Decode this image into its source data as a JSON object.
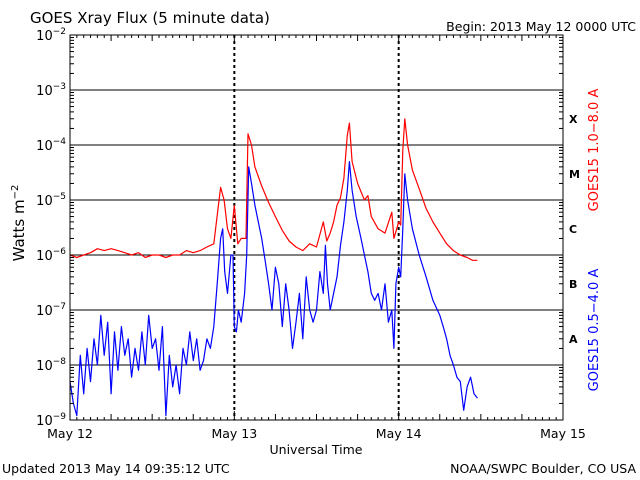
{
  "header": {
    "title": "GOES Xray Flux (5 minute data)",
    "begin": "Begin:  2013 May 12 0000 UTC"
  },
  "footer": {
    "updated": "Updated 2013 May 14 09:35:12 UTC",
    "source": "NOAA/SWPC Boulder, CO USA"
  },
  "chart_data": {
    "type": "line",
    "title": "GOES Xray Flux (5 minute data)",
    "xlabel": "Universal Time",
    "ylabel": "Watts m^-2",
    "y_scale": "log",
    "ylim": [
      1e-09,
      0.01
    ],
    "xlim": [
      0,
      72
    ],
    "x_unit": "hours since 2013 May 12 0000 UTC",
    "x_ticks": [
      {
        "x": 0,
        "label": "May 12"
      },
      {
        "x": 24,
        "label": "May 13"
      },
      {
        "x": 48,
        "label": "May 14"
      },
      {
        "x": 72,
        "label": "May 15"
      }
    ],
    "y_ticks": [
      {
        "exp": -9,
        "base": "10",
        "sup": "−9"
      },
      {
        "exp": -8,
        "base": "10",
        "sup": "−8"
      },
      {
        "exp": -7,
        "base": "10",
        "sup": "−7"
      },
      {
        "exp": -6,
        "base": "10",
        "sup": "−6"
      },
      {
        "exp": -5,
        "base": "10",
        "sup": "−5"
      },
      {
        "exp": -4,
        "base": "10",
        "sup": "−4"
      },
      {
        "exp": -3,
        "base": "10",
        "sup": "−3"
      },
      {
        "exp": -2,
        "base": "10",
        "sup": "−2"
      }
    ],
    "flare_classes": [
      {
        "label": "A",
        "y": 3e-08
      },
      {
        "label": "B",
        "y": 3e-07
      },
      {
        "label": "C",
        "y": 3e-06
      },
      {
        "label": "M",
        "y": 3e-05
      },
      {
        "label": "X",
        "y": 0.0003
      }
    ],
    "grid": true,
    "series": [
      {
        "name": "GOES15 1.0−8.0 A",
        "color": "#ff0000",
        "points": [
          [
            0,
            1e-06
          ],
          [
            1,
            9e-07
          ],
          [
            2,
            1e-06
          ],
          [
            3,
            1.1e-06
          ],
          [
            4,
            1.3e-06
          ],
          [
            5,
            1.2e-06
          ],
          [
            6,
            1.3e-06
          ],
          [
            7,
            1.2e-06
          ],
          [
            8,
            1.1e-06
          ],
          [
            9,
            1e-06
          ],
          [
            10,
            1.1e-06
          ],
          [
            11,
            9e-07
          ],
          [
            12,
            1e-06
          ],
          [
            13,
            1e-06
          ],
          [
            14,
            9e-07
          ],
          [
            15,
            1e-06
          ],
          [
            16,
            1e-06
          ],
          [
            17,
            1.2e-06
          ],
          [
            18,
            1.1e-06
          ],
          [
            19,
            1.2e-06
          ],
          [
            20,
            1.4e-06
          ],
          [
            21,
            1.6e-06
          ],
          [
            22,
            1.7e-05
          ],
          [
            22.5,
            1e-05
          ],
          [
            23,
            3e-06
          ],
          [
            23.5,
            2e-06
          ],
          [
            24,
            8e-06
          ],
          [
            24.5,
            1.6e-06
          ],
          [
            25,
            2e-06
          ],
          [
            25.7,
            2e-06
          ],
          [
            26,
            0.00016
          ],
          [
            26.5,
            0.0001
          ],
          [
            27,
            4e-05
          ],
          [
            28,
            1.8e-05
          ],
          [
            29,
            9e-06
          ],
          [
            30,
            5e-06
          ],
          [
            31,
            2.8e-06
          ],
          [
            32,
            1.8e-06
          ],
          [
            33,
            1.4e-06
          ],
          [
            34,
            1.2e-06
          ],
          [
            35,
            1.6e-06
          ],
          [
            36,
            1.4e-06
          ],
          [
            37,
            4e-06
          ],
          [
            37.5,
            1.8e-06
          ],
          [
            38,
            2.5e-06
          ],
          [
            38.5,
            4e-06
          ],
          [
            39,
            8e-06
          ],
          [
            39.5,
            1.1e-05
          ],
          [
            40,
            2.5e-05
          ],
          [
            40.5,
            0.00015
          ],
          [
            40.8,
            0.00025
          ],
          [
            41.2,
            5e-05
          ],
          [
            42,
            2e-05
          ],
          [
            43,
            1e-05
          ],
          [
            43.5,
            1.2e-05
          ],
          [
            44,
            5e-06
          ],
          [
            45,
            3e-06
          ],
          [
            46,
            2.5e-06
          ],
          [
            47,
            6e-06
          ],
          [
            47.3,
            2e-06
          ],
          [
            48,
            4e-06
          ],
          [
            48.3,
            3.5e-06
          ],
          [
            48.6,
            8e-05
          ],
          [
            48.9,
            0.0003
          ],
          [
            49.3,
            0.0001
          ],
          [
            50,
            3.5e-05
          ],
          [
            51,
            1.6e-05
          ],
          [
            52,
            7e-06
          ],
          [
            53,
            4e-06
          ],
          [
            54,
            2.5e-06
          ],
          [
            55,
            1.6e-06
          ],
          [
            56,
            1.2e-06
          ],
          [
            57,
            1e-06
          ],
          [
            58,
            9e-07
          ],
          [
            58.8,
            8e-07
          ],
          [
            59.5,
            8e-07
          ]
        ]
      },
      {
        "name": "GOES15 0.5−4.0 A",
        "color": "#0000ff",
        "points": [
          [
            0,
            5e-09
          ],
          [
            0.5,
            2e-09
          ],
          [
            1,
            1.2e-09
          ],
          [
            1.5,
            1.5e-08
          ],
          [
            2,
            3e-09
          ],
          [
            2.5,
            2e-08
          ],
          [
            3,
            5e-09
          ],
          [
            3.5,
            3e-08
          ],
          [
            4,
            1e-08
          ],
          [
            4.5,
            8e-08
          ],
          [
            5,
            1.5e-08
          ],
          [
            5.5,
            6e-08
          ],
          [
            6,
            3e-09
          ],
          [
            6.5,
            4e-08
          ],
          [
            7,
            8e-09
          ],
          [
            7.5,
            5e-08
          ],
          [
            8,
            1.5e-08
          ],
          [
            8.5,
            3e-08
          ],
          [
            9,
            6e-09
          ],
          [
            9.5,
            2e-08
          ],
          [
            10,
            8e-09
          ],
          [
            10.5,
            4e-08
          ],
          [
            11,
            1e-08
          ],
          [
            11.5,
            8e-08
          ],
          [
            12,
            2e-08
          ],
          [
            12.5,
            3e-08
          ],
          [
            13,
            8e-09
          ],
          [
            13.5,
            5e-08
          ],
          [
            14,
            1.2e-09
          ],
          [
            14.5,
            1.5e-08
          ],
          [
            15,
            4e-09
          ],
          [
            15.5,
            1e-08
          ],
          [
            16,
            3e-09
          ],
          [
            16.5,
            2e-08
          ],
          [
            17,
            1e-08
          ],
          [
            17.5,
            4e-08
          ],
          [
            18,
            1.2e-08
          ],
          [
            18.5,
            3e-08
          ],
          [
            19,
            8e-09
          ],
          [
            19.5,
            1.2e-08
          ],
          [
            20,
            3e-08
          ],
          [
            20.5,
            2e-08
          ],
          [
            21,
            5e-08
          ],
          [
            21.5,
            3e-07
          ],
          [
            22,
            2e-06
          ],
          [
            22.3,
            3e-06
          ],
          [
            22.6,
            5e-07
          ],
          [
            23,
            2e-07
          ],
          [
            23.5,
            1e-06
          ],
          [
            23.8,
            1e-06
          ],
          [
            24,
            5e-08
          ],
          [
            24.3,
            4e-08
          ],
          [
            24.6,
            1e-07
          ],
          [
            25,
            6e-08
          ],
          [
            25.5,
            2e-07
          ],
          [
            25.8,
            1e-06
          ],
          [
            26.1,
            4e-05
          ],
          [
            26.5,
            2e-05
          ],
          [
            27,
            8e-06
          ],
          [
            27.5,
            4e-06
          ],
          [
            28,
            2e-06
          ],
          [
            28.5,
            8e-07
          ],
          [
            29,
            3e-07
          ],
          [
            29.5,
            1e-07
          ],
          [
            30,
            6e-07
          ],
          [
            30.5,
            3e-07
          ],
          [
            31,
            5e-08
          ],
          [
            31.5,
            3e-07
          ],
          [
            32,
            1e-07
          ],
          [
            32.5,
            2e-08
          ],
          [
            33,
            6e-08
          ],
          [
            33.5,
            2e-07
          ],
          [
            34,
            3e-08
          ],
          [
            34.5,
            4e-07
          ],
          [
            35,
            1e-07
          ],
          [
            35.5,
            6e-08
          ],
          [
            36,
            1e-07
          ],
          [
            36.5,
            5e-07
          ],
          [
            37,
            2e-07
          ],
          [
            37.3,
            1.5e-06
          ],
          [
            37.6,
            3e-07
          ],
          [
            38,
            1e-07
          ],
          [
            38.5,
            2e-07
          ],
          [
            39,
            4e-07
          ],
          [
            39.5,
            1.5e-06
          ],
          [
            40,
            4e-06
          ],
          [
            40.5,
            1.5e-05
          ],
          [
            40.8,
            5e-05
          ],
          [
            41.2,
            1.5e-05
          ],
          [
            41.8,
            5e-06
          ],
          [
            42.5,
            2e-06
          ],
          [
            43,
            1e-06
          ],
          [
            43.5,
            5e-07
          ],
          [
            44,
            2e-07
          ],
          [
            44.5,
            1.5e-07
          ],
          [
            45,
            2e-07
          ],
          [
            45.5,
            1e-07
          ],
          [
            46,
            3e-07
          ],
          [
            46.5,
            6e-08
          ],
          [
            47,
            1e-07
          ],
          [
            47.3,
            2e-08
          ],
          [
            47.6,
            3e-07
          ],
          [
            48,
            6e-07
          ],
          [
            48.3,
            4e-07
          ],
          [
            48.6,
            3e-06
          ],
          [
            48.9,
            3e-05
          ],
          [
            49.3,
            1e-05
          ],
          [
            50,
            3e-06
          ],
          [
            51,
            1e-06
          ],
          [
            52,
            4e-07
          ],
          [
            53,
            1.5e-07
          ],
          [
            54,
            8e-08
          ],
          [
            54.5,
            5e-08
          ],
          [
            55,
            3e-08
          ],
          [
            55.5,
            1.5e-08
          ],
          [
            56,
            1e-08
          ],
          [
            56.5,
            6e-09
          ],
          [
            57,
            5e-09
          ],
          [
            57.5,
            1.5e-09
          ],
          [
            58,
            4e-09
          ],
          [
            58.5,
            6e-09
          ],
          [
            59,
            3e-09
          ],
          [
            59.5,
            2.5e-09
          ]
        ]
      }
    ]
  }
}
